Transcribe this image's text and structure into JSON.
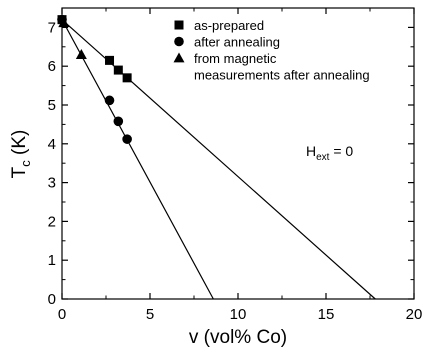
{
  "chart_data": {
    "type": "scatter",
    "xlabel": "v (vol% Co)",
    "ylabel": {
      "main": "T",
      "sub": "c",
      "unit": " (K)"
    },
    "xlim": [
      0,
      20
    ],
    "ylim": [
      0,
      7.5
    ],
    "x_ticks": [
      "0",
      "5",
      "10",
      "15",
      "20"
    ],
    "y_ticks": [
      "0",
      "1",
      "2",
      "3",
      "4",
      "5",
      "6",
      "7"
    ],
    "grid": false,
    "legend_position": "top-center",
    "series": [
      {
        "name": "as-prepared",
        "marker": "square",
        "points": [
          [
            0,
            7.2
          ],
          [
            2.7,
            6.15
          ],
          [
            3.2,
            5.9
          ],
          [
            3.7,
            5.7
          ]
        ]
      },
      {
        "name": "after annealing",
        "marker": "circle",
        "points": [
          [
            0,
            7.2
          ],
          [
            2.7,
            5.12
          ],
          [
            3.2,
            4.58
          ],
          [
            3.7,
            4.12
          ]
        ]
      },
      {
        "name": "from magnetic measurements after annealing",
        "legend_lines": [
          "from magnetic",
          "measurements after annealing"
        ],
        "marker": "triangle",
        "points": [
          [
            0.1,
            7.12
          ],
          [
            1.1,
            6.3
          ]
        ]
      }
    ],
    "fit_lines": [
      {
        "from": [
          0,
          7.2
        ],
        "to": [
          17.8,
          0
        ]
      },
      {
        "from": [
          0,
          7.2
        ],
        "to": [
          8.6,
          0
        ]
      }
    ],
    "annotation": {
      "main": "H",
      "sub": "ext",
      "rest": " = 0"
    }
  }
}
